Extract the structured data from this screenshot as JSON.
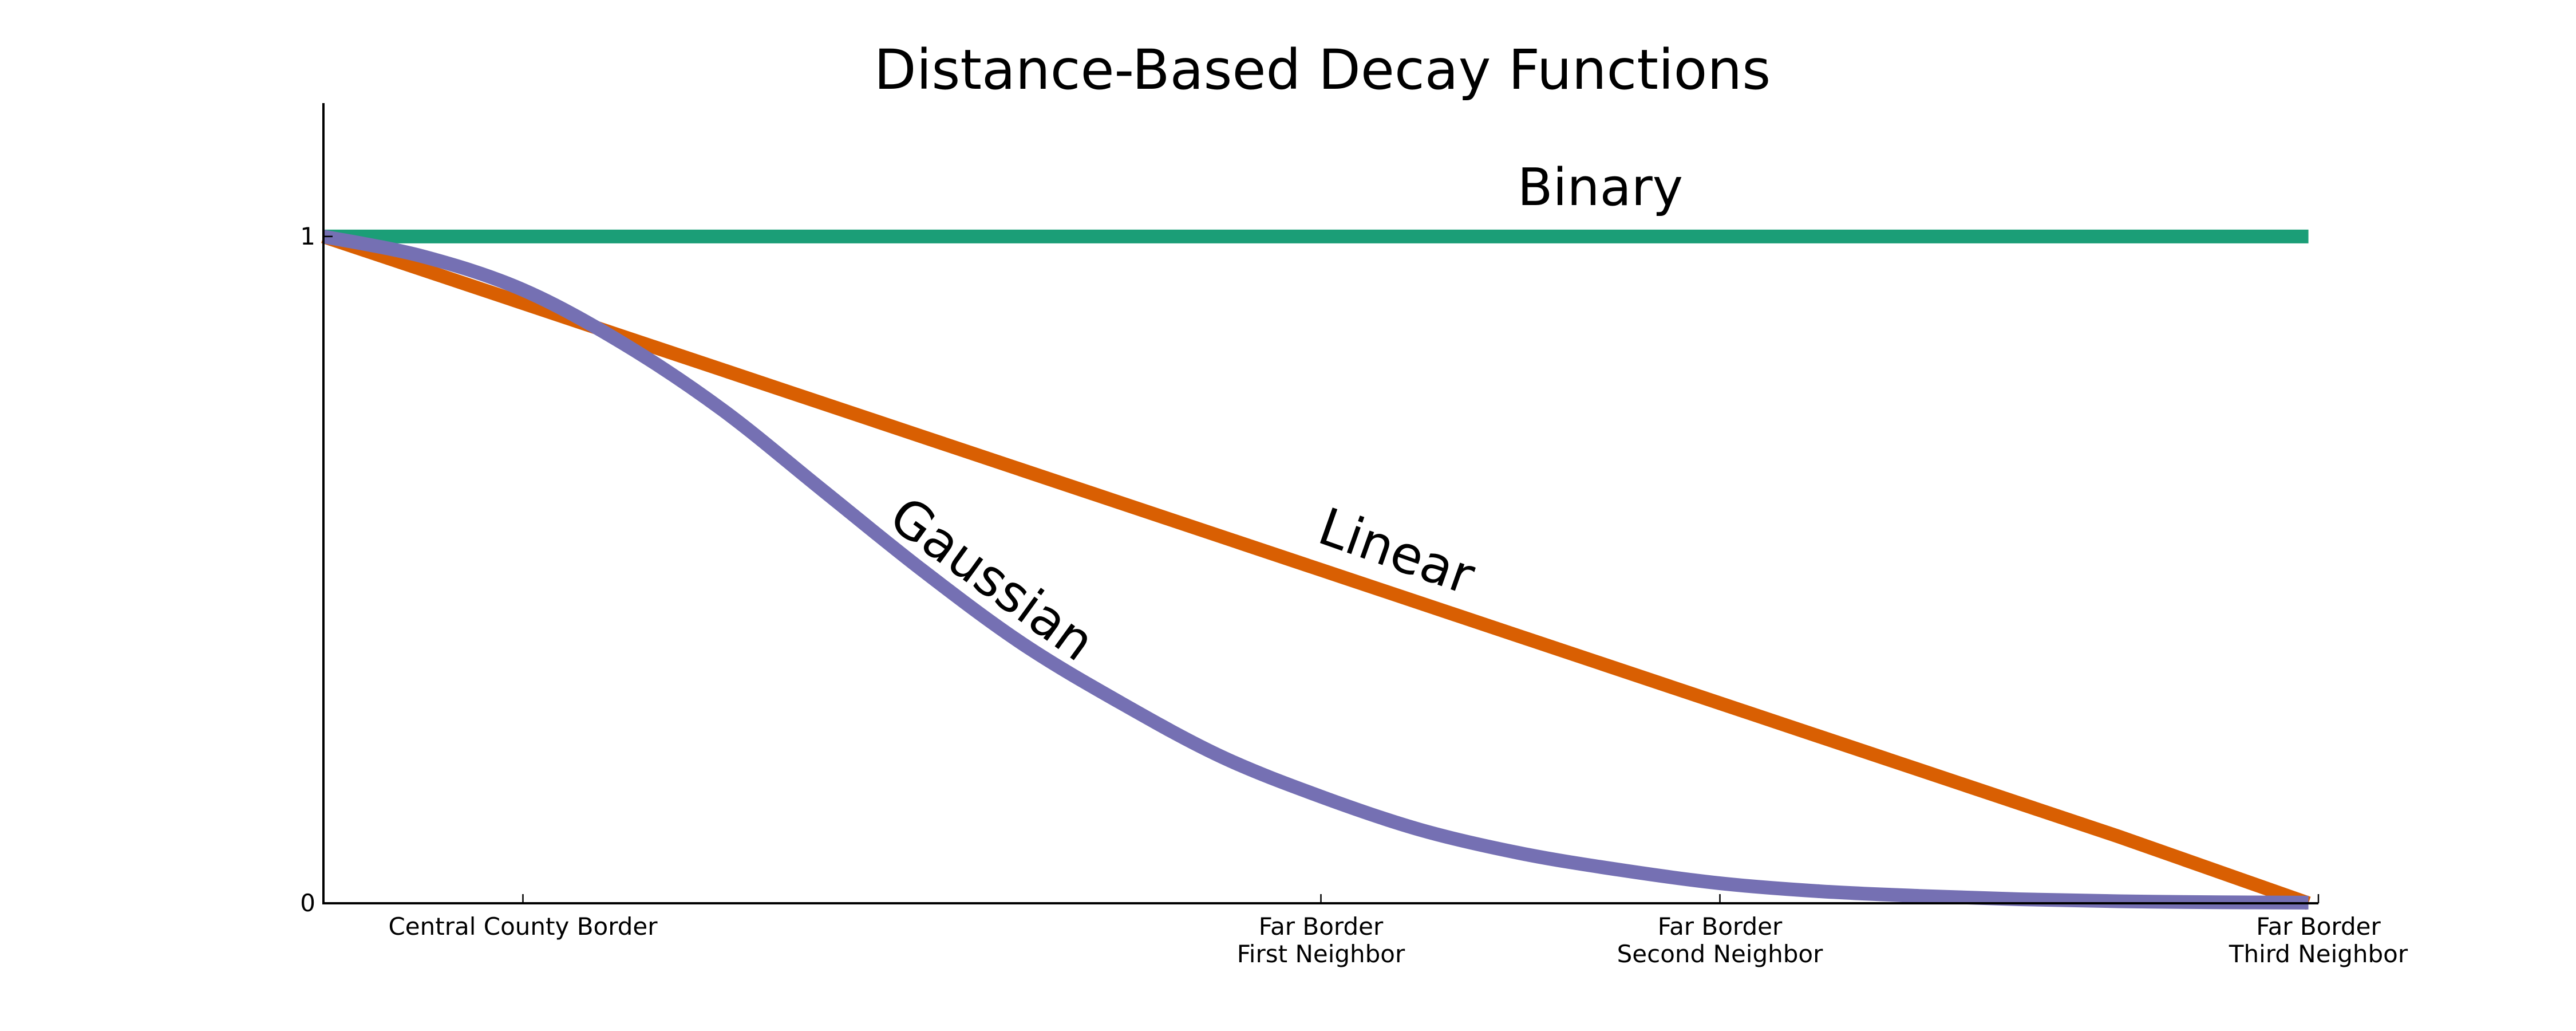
{
  "chart_data": {
    "type": "line",
    "title": "Distance-Based Decay Functions",
    "xlabel": "",
    "ylabel": "",
    "xlim": [
      0,
      1
    ],
    "ylim": [
      0,
      1.2
    ],
    "grid": false,
    "legend": "none (inline labels)",
    "x_ticks": [
      {
        "x": 0.1,
        "lines": [
          "Central County Border"
        ]
      },
      {
        "x": 0.5,
        "lines": [
          "Far Border",
          "First Neighbor"
        ]
      },
      {
        "x": 0.7,
        "lines": [
          "Far Border",
          "Second Neighbor"
        ]
      },
      {
        "x": 1.0,
        "lines": [
          "Far Border",
          "Third Neighbor"
        ]
      }
    ],
    "y_ticks": [
      {
        "y": 0,
        "label": "0"
      },
      {
        "y": 1,
        "label": "1"
      }
    ],
    "series": [
      {
        "name": "Binary",
        "color": "#1b9e77",
        "x": [
          0,
          0.1,
          0.2,
          0.3,
          0.4,
          0.5,
          0.6,
          0.7,
          0.8,
          0.9,
          0.995
        ],
        "y": [
          1,
          1,
          1,
          1,
          1,
          1,
          1,
          1,
          1,
          1,
          1
        ]
      },
      {
        "name": "Linear",
        "color": "#d95f02",
        "x": [
          0,
          0.1,
          0.2,
          0.3,
          0.4,
          0.5,
          0.6,
          0.7,
          0.8,
          0.9,
          0.995
        ],
        "y": [
          1,
          0.9,
          0.8,
          0.7,
          0.6,
          0.5,
          0.4,
          0.3,
          0.2,
          0.1,
          0.0
        ]
      },
      {
        "name": "Gaussian",
        "color": "#7570b3",
        "x": [
          0,
          0.05,
          0.1,
          0.15,
          0.2,
          0.25,
          0.3,
          0.35,
          0.4,
          0.45,
          0.5,
          0.55,
          0.6,
          0.65,
          0.7,
          0.75,
          0.8,
          0.85,
          0.9,
          0.95,
          0.995
        ],
        "y": [
          1.0,
          0.97,
          0.92,
          0.84,
          0.74,
          0.62,
          0.5,
          0.39,
          0.3,
          0.22,
          0.16,
          0.11,
          0.075,
          0.05,
          0.03,
          0.018,
          0.011,
          0.006,
          0.003,
          0.0015,
          0.001
        ]
      }
    ],
    "annotations": [
      {
        "series": "Binary",
        "text": "Binary"
      },
      {
        "series": "Linear",
        "text": "Linear"
      },
      {
        "series": "Gaussian",
        "text": "Gaussian"
      }
    ]
  }
}
